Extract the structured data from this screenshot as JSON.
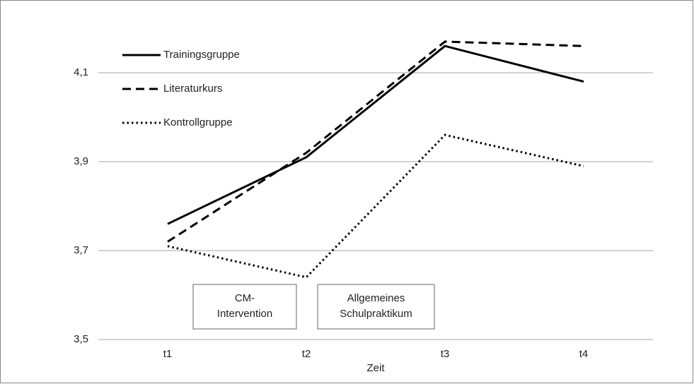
{
  "chart_data": {
    "type": "line",
    "x_label": "Zeit",
    "categories": [
      "t1",
      "t2",
      "t3",
      "t4"
    ],
    "series": [
      {
        "name": "Trainingsgruppe",
        "color": "#000000",
        "dash": "solid",
        "values": [
          3.76,
          3.91,
          4.16,
          4.08
        ]
      },
      {
        "name": "Literaturkurs",
        "color": "#000000",
        "dash": "dashed",
        "values": [
          3.72,
          3.92,
          4.17,
          4.16
        ]
      },
      {
        "name": "Kontrollgruppe",
        "color": "#000000",
        "dash": "dotted",
        "values": [
          3.71,
          3.64,
          3.96,
          3.89
        ]
      }
    ],
    "ylim": [
      3.5,
      4.2
    ],
    "yticks": [
      {
        "value": 3.5,
        "label": "3,5"
      },
      {
        "value": 3.7,
        "label": "3,7"
      },
      {
        "value": 3.9,
        "label": "3,9"
      },
      {
        "value": 4.1,
        "label": "4,1"
      }
    ],
    "grid": true,
    "legend": "upper left",
    "annotations": [
      {
        "lines": [
          "CM-",
          "Intervention"
        ]
      },
      {
        "lines": [
          "Allgemeines",
          "Schulpraktikum"
        ]
      }
    ]
  }
}
